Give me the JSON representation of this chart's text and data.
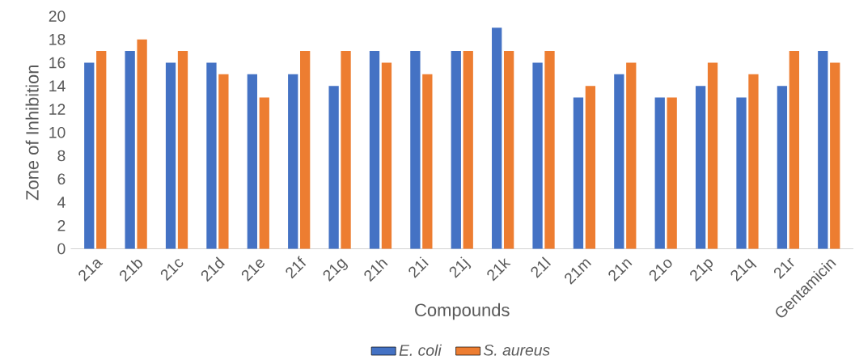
{
  "chart_data": {
    "type": "bar",
    "xlabel": "Compounds",
    "ylabel": "Zone of Inhibition",
    "categories": [
      "21a",
      "21b",
      "21c",
      "21d",
      "21e",
      "21f",
      "21g",
      "21h",
      "21i",
      "21j",
      "21k",
      "21l",
      "21m",
      "21n",
      "21o",
      "21p",
      "21q",
      "21r",
      "Gentamicin"
    ],
    "series": [
      {
        "name": "E. coli",
        "color": "#4472c4",
        "values": [
          16,
          17,
          16,
          16,
          15,
          15,
          14,
          17,
          17,
          17,
          19,
          16,
          13,
          15,
          13,
          14,
          13,
          14,
          17
        ]
      },
      {
        "name": "S. aureus",
        "color": "#ed7d31",
        "values": [
          17,
          18,
          17,
          15,
          13,
          17,
          17,
          16,
          15,
          17,
          17,
          17,
          14,
          16,
          13,
          16,
          15,
          17,
          16
        ]
      }
    ],
    "ylim": [
      0,
      20
    ],
    "yticks": [
      0,
      2,
      4,
      6,
      8,
      10,
      12,
      14,
      16,
      18,
      20
    ],
    "grid": false,
    "legend": "bottom"
  }
}
